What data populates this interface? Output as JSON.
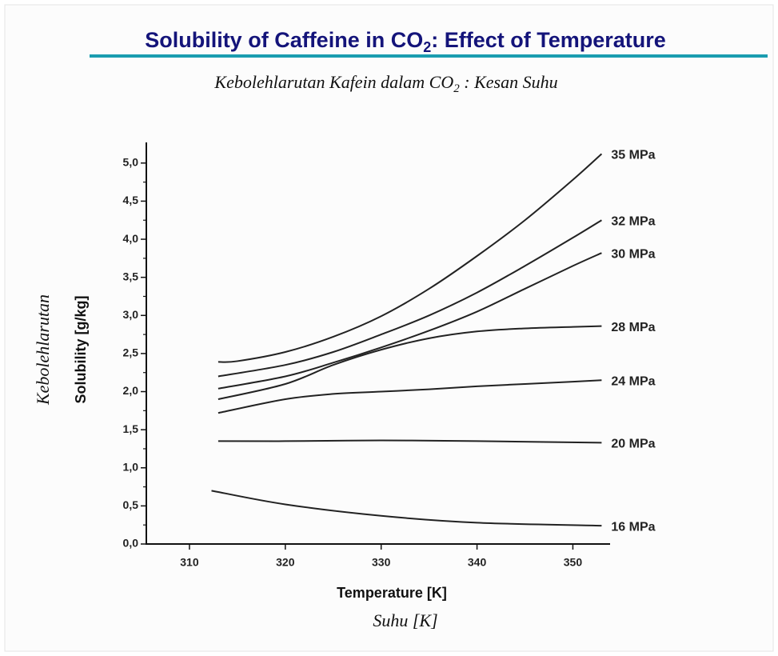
{
  "chart_data": {
    "type": "line",
    "title": {
      "before": "Solubility of Caffeine in CO",
      "sub": "2",
      "after": ": Effect of Temperature"
    },
    "subtitle": {
      "before": "Kebolehlarutan Kafein dalam CO",
      "sub": "2",
      "after": " : Kesan Suhu"
    },
    "x_label": "Temperature [K]",
    "x_label_alt": "Suhu [K]",
    "y_label": "Solubility [g/kg]",
    "y_label_alt": "Kebolehlarutan",
    "xlim": [
      305.5,
      353.8
    ],
    "xticks": [
      310,
      320,
      330,
      340,
      350
    ],
    "ylim": [
      0,
      5.25
    ],
    "yticks": [
      {
        "value": 0,
        "label": "0,0"
      },
      {
        "value": 0.5,
        "label": "0,5"
      },
      {
        "value": 1,
        "label": "1,0"
      },
      {
        "value": 1.5,
        "label": "1,5"
      },
      {
        "value": 2,
        "label": "2,0"
      },
      {
        "value": 2.5,
        "label": "2,5"
      },
      {
        "value": 3,
        "label": "3,0"
      },
      {
        "value": 3.5,
        "label": "3,5"
      },
      {
        "value": 4,
        "label": "4,0"
      },
      {
        "value": 4.5,
        "label": "4,5"
      },
      {
        "value": 5,
        "label": "5,0"
      }
    ],
    "yminorticks": [
      0.25,
      0.75,
      1.25,
      1.75,
      2.25,
      2.75,
      3.25,
      3.75,
      4.25,
      4.75
    ],
    "grid": false,
    "series": [
      {
        "name": "35 MPa",
        "color": "#222222",
        "x": [
          313,
          315,
          320,
          325,
          330,
          335,
          340,
          345,
          350,
          353
        ],
        "values": [
          2.39,
          2.4,
          2.52,
          2.72,
          2.99,
          3.35,
          3.78,
          4.25,
          4.78,
          5.12
        ]
      },
      {
        "name": "32 MPa",
        "color": "#222222",
        "x": [
          313,
          320,
          325,
          330,
          335,
          340,
          345,
          350,
          353
        ],
        "values": [
          2.2,
          2.35,
          2.52,
          2.75,
          3.0,
          3.3,
          3.65,
          4.02,
          4.25
        ]
      },
      {
        "name": "30 MPa",
        "color": "#222222",
        "x": [
          313,
          320,
          325,
          330,
          335,
          340,
          345,
          350,
          353
        ],
        "values": [
          2.04,
          2.2,
          2.38,
          2.58,
          2.8,
          3.05,
          3.35,
          3.65,
          3.82
        ]
      },
      {
        "name": "28 MPa",
        "color": "#222222",
        "x": [
          313,
          320,
          325,
          330,
          335,
          340,
          345,
          350,
          353
        ],
        "values": [
          1.9,
          2.1,
          2.35,
          2.55,
          2.7,
          2.79,
          2.83,
          2.85,
          2.86
        ]
      },
      {
        "name": "24 MPa",
        "color": "#222222",
        "x": [
          313,
          320,
          325,
          330,
          335,
          340,
          345,
          350,
          353
        ],
        "values": [
          1.72,
          1.9,
          1.97,
          2.0,
          2.03,
          2.07,
          2.1,
          2.13,
          2.15
        ]
      },
      {
        "name": "20 MPa",
        "color": "#222222",
        "x": [
          313,
          320,
          330,
          340,
          353
        ],
        "values": [
          1.35,
          1.35,
          1.36,
          1.35,
          1.33
        ]
      },
      {
        "name": "16 MPa",
        "color": "#222222",
        "x": [
          312.3,
          320,
          330,
          340,
          353
        ],
        "values": [
          0.7,
          0.52,
          0.37,
          0.28,
          0.24
        ]
      }
    ]
  }
}
